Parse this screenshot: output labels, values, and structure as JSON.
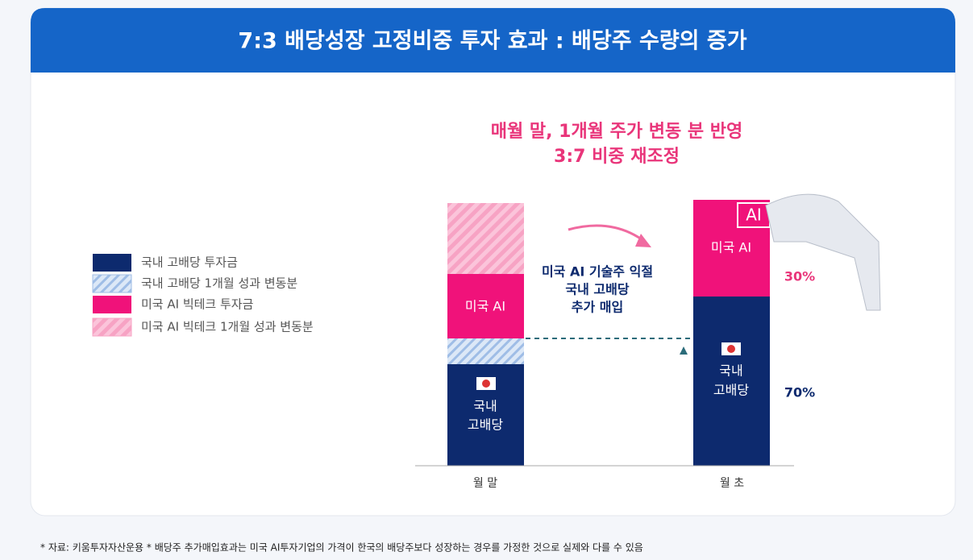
{
  "header": {
    "title": "7:3 배당성장 고정비중 투자 효과 : 배당주 수량의 증가"
  },
  "callout": {
    "lines": [
      "매월 말, 1개월 주가 변동 분 반영",
      "3:7 비중 재조정"
    ]
  },
  "legend": [
    "국내 고배당 투자금",
    "국내 고배당 1개월 성과 변동분",
    "미국 AI 빅테크 투자금",
    "미국 AI 빅테크 1개월 성과 변동분"
  ],
  "left_bar": {
    "label": "월 말",
    "us": "미국 AI",
    "kr": [
      "국내",
      "고배당"
    ]
  },
  "right_bar": {
    "label": "월 초",
    "us": "미국 AI",
    "kr": [
      "국내",
      "고배당"
    ],
    "us_share": "30%",
    "kr_share": "70%"
  },
  "middle_note": [
    "미국 AI 기술주 익절",
    "국내 고배당",
    "추가 매입"
  ],
  "ai_badge": "AI",
  "footnote": "* 자료: 키움투자자산운용 * 배당주 추가매입효과는 미국 AI투자기업의 가격이 한국의 배당주보다 성장하는 경우를 가정한 것으로 실제와 다를 수 있음"
}
